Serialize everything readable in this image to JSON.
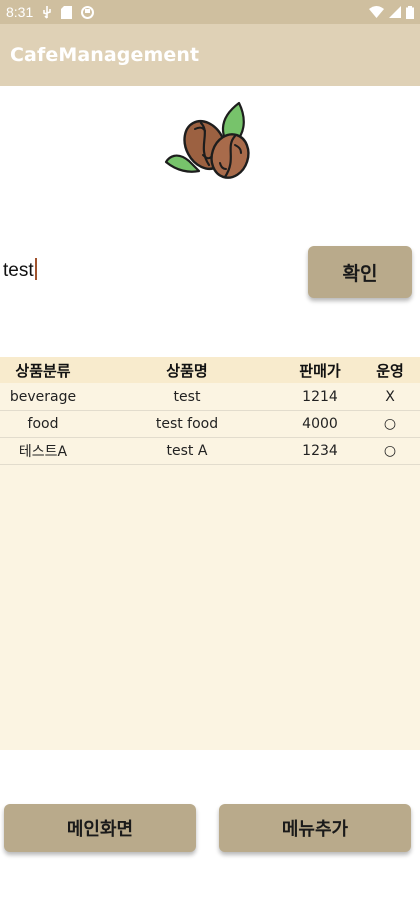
{
  "status_bar": {
    "time": "8:31",
    "icons": [
      "usb-icon",
      "sd-card-icon",
      "sync-icon",
      "wifi-icon",
      "signal-icon",
      "battery-icon"
    ]
  },
  "app_bar": {
    "title": "CafeManagement"
  },
  "logo": {
    "icon": "coffee-beans-icon"
  },
  "search": {
    "value": "test",
    "button_label": "확인"
  },
  "table": {
    "headers": [
      "상품분류",
      "상품명",
      "판매가",
      "운영"
    ],
    "rows": [
      {
        "category": "beverage",
        "name": "test",
        "price": "1214",
        "status": "X"
      },
      {
        "category": "food",
        "name": "test food",
        "price": "4000",
        "status": "○"
      },
      {
        "category": "테스트A",
        "name": "test A",
        "price": "1234",
        "status": "○"
      }
    ]
  },
  "buttons": {
    "main_screen": "메인화면",
    "add_menu": "메뉴추가"
  },
  "colors": {
    "status_bar": "#cfbf9f",
    "app_bar": "#dfd1b6",
    "button": "#b9aa8b",
    "table_header": "#f8ebcd",
    "table_body": "#fbf4e2"
  }
}
